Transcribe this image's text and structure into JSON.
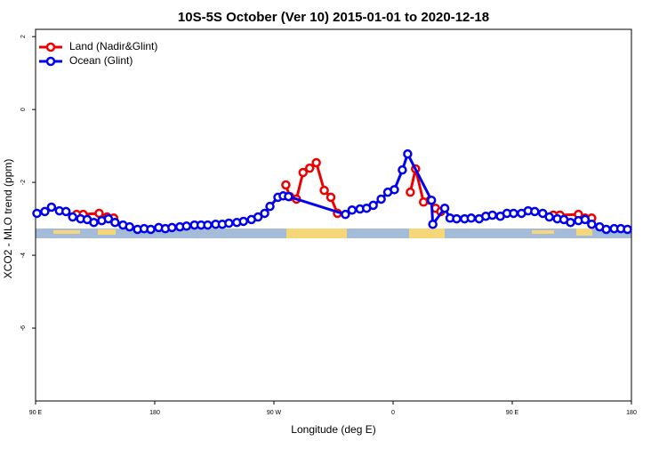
{
  "chart_data": {
    "type": "line",
    "title": "10S-5S October (Ver 10)   2015-01-01 to 2020-12-18",
    "x_label": "Longitude (deg E)",
    "y_label": "XCO2 - MLO trend (ppm)",
    "xlim": [
      90,
      540
    ],
    "xticks": [
      {
        "value": 90,
        "label": "90 E"
      },
      180,
      {
        "value": 270,
        "label": "90 W"
      },
      {
        "value": 360,
        "label": "0"
      },
      {
        "value": 450,
        "label": "90 E"
      },
      {
        "value": 540,
        "label": "180"
      }
    ],
    "ylim": [
      -8,
      2.2
    ],
    "yticks": [
      2,
      0,
      -2,
      -4,
      -6
    ],
    "legend": "top-left",
    "series": [
      {
        "name": "Land (Nadir&Glint)",
        "color": "#ee0000",
        "x": [
          121,
          126,
          138,
          144,
          149,
          200,
          279,
          282,
          287,
          292,
          297,
          302,
          308,
          313,
          318,
          340,
          373,
          377,
          383,
          388,
          392,
          396,
          440,
          481,
          486,
          500,
          505,
          510
        ],
        "values": [
          -2.88,
          -2.88,
          -2.85,
          -2.95,
          -2.98,
          null,
          -2.07,
          -2.39,
          -2.46,
          -1.73,
          -1.61,
          -1.46,
          -2.22,
          -2.41,
          -2.85,
          null,
          -2.27,
          -1.63,
          -2.54,
          -2.49,
          -2.71,
          -2.8,
          null,
          -2.9,
          -2.9,
          -2.88,
          -2.98,
          -2.98
        ]
      },
      {
        "name": "Ocean (Glint)",
        "color": "#0000ee",
        "x": [
          91,
          97,
          102,
          108,
          113,
          118,
          124,
          129,
          134,
          140,
          145,
          150,
          156,
          161,
          167,
          172,
          177,
          183,
          188,
          193,
          199,
          204,
          210,
          215,
          220,
          226,
          231,
          236,
          242,
          247,
          253,
          258,
          263,
          267,
          273,
          277,
          281,
          324,
          329,
          335,
          340,
          345,
          351,
          356,
          361,
          367,
          371,
          389,
          390,
          399,
          403,
          408,
          414,
          419,
          425,
          430,
          435,
          441,
          446,
          451,
          457,
          462,
          467,
          473,
          478,
          484,
          489,
          494,
          500,
          505,
          510,
          516,
          521,
          527,
          532,
          537
        ],
        "values": [
          -2.85,
          -2.8,
          -2.68,
          -2.78,
          -2.8,
          -2.95,
          -3.0,
          -3.02,
          -3.1,
          -3.05,
          -3.0,
          -3.1,
          -3.17,
          -3.22,
          -3.29,
          -3.27,
          -3.29,
          -3.24,
          -3.27,
          -3.24,
          -3.22,
          -3.2,
          -3.17,
          -3.17,
          -3.17,
          -3.15,
          -3.15,
          -3.12,
          -3.1,
          -3.07,
          -3.02,
          -2.95,
          -2.85,
          -2.66,
          -2.41,
          -2.37,
          -2.39,
          -2.88,
          -2.76,
          -2.73,
          -2.71,
          -2.63,
          -2.46,
          -2.27,
          -2.2,
          -1.66,
          -1.22,
          -2.49,
          -3.15,
          -2.71,
          -2.98,
          -3.0,
          -3.0,
          -2.98,
          -3.0,
          -2.93,
          -2.9,
          -2.93,
          -2.85,
          -2.85,
          -2.85,
          -2.78,
          -2.8,
          -2.85,
          -2.95,
          -3.0,
          -3.02,
          -3.1,
          -3.05,
          -3.02,
          -3.15,
          -3.22,
          -3.29,
          -3.27,
          -3.27,
          -3.29
        ]
      }
    ]
  }
}
